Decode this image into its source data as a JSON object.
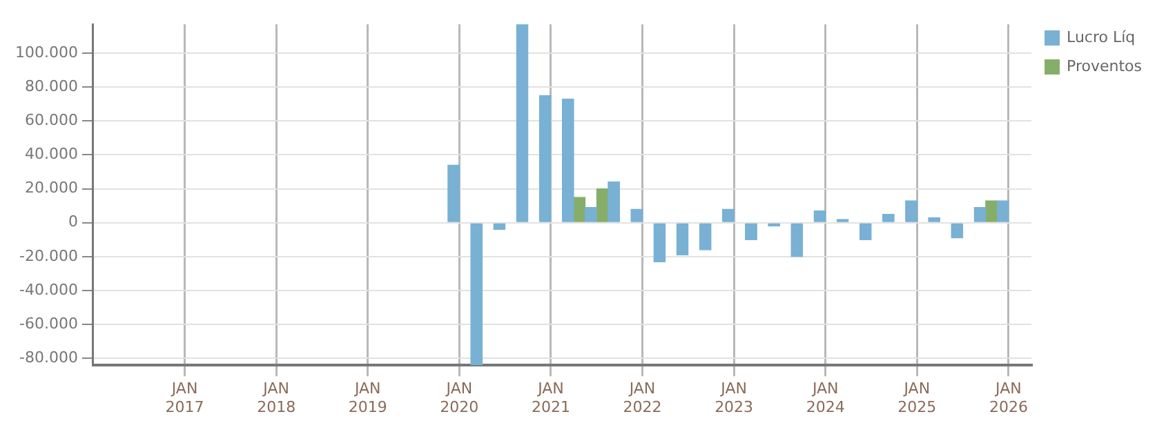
{
  "chart_data": {
    "type": "bar",
    "x": [
      "2020-01",
      "2020-04",
      "2020-07",
      "2020-10",
      "2021-01",
      "2021-04",
      "2021-07",
      "2021-10",
      "2022-01",
      "2022-04",
      "2022-07",
      "2022-10",
      "2023-01",
      "2023-04",
      "2023-07",
      "2023-10",
      "2024-01",
      "2024-04",
      "2024-07",
      "2024-10",
      "2025-01",
      "2025-04",
      "2025-07",
      "2025-10",
      "2026-01"
    ],
    "series": [
      {
        "name": "Lucro Líq",
        "color": "#78b1d3",
        "values": [
          34000,
          -84000,
          -4000,
          117000,
          75000,
          73000,
          9000,
          24000,
          8000,
          -23000,
          -19000,
          -16000,
          8000,
          -10000,
          -2000,
          -20000,
          7000,
          2000,
          -10000,
          5000,
          13000,
          3000,
          -9000,
          9000,
          13000
        ]
      },
      {
        "name": "Proventos",
        "color": "#86ae68",
        "values": [
          0,
          0,
          0,
          0,
          0,
          15000,
          20000,
          0,
          0,
          0,
          0,
          0,
          0,
          0,
          0,
          0,
          0,
          0,
          0,
          0,
          0,
          0,
          0,
          13000,
          0
        ]
      }
    ],
    "xlim": [
      "2016-01",
      "2026-04"
    ],
    "xticks": [
      {
        "value": "2017-01",
        "label": "JAN\n2017"
      },
      {
        "value": "2018-01",
        "label": "JAN\n2018"
      },
      {
        "value": "2019-01",
        "label": "JAN\n2019"
      },
      {
        "value": "2020-01",
        "label": "JAN\n2020"
      },
      {
        "value": "2021-01",
        "label": "JAN\n2021"
      },
      {
        "value": "2022-01",
        "label": "JAN\n2022"
      },
      {
        "value": "2023-01",
        "label": "JAN\n2023"
      },
      {
        "value": "2024-01",
        "label": "JAN\n2024"
      },
      {
        "value": "2025-01",
        "label": "JAN\n2025"
      },
      {
        "value": "2026-01",
        "label": "JAN\n2026"
      }
    ],
    "ylim": [
      -84000,
      117000
    ],
    "yticks": [
      {
        "value": -80000,
        "label": "-80.000"
      },
      {
        "value": -60000,
        "label": "-60.000"
      },
      {
        "value": -40000,
        "label": "-40.000"
      },
      {
        "value": -20000,
        "label": "-20.000"
      },
      0,
      {
        "value": 20000,
        "label": "20.000"
      },
      {
        "value": 40000,
        "label": "40.000"
      },
      {
        "value": 60000,
        "label": "60.000"
      },
      {
        "value": 80000,
        "label": "80.000"
      },
      {
        "value": 100000,
        "label": "100.000"
      }
    ],
    "grid": true,
    "legend": "top right"
  }
}
